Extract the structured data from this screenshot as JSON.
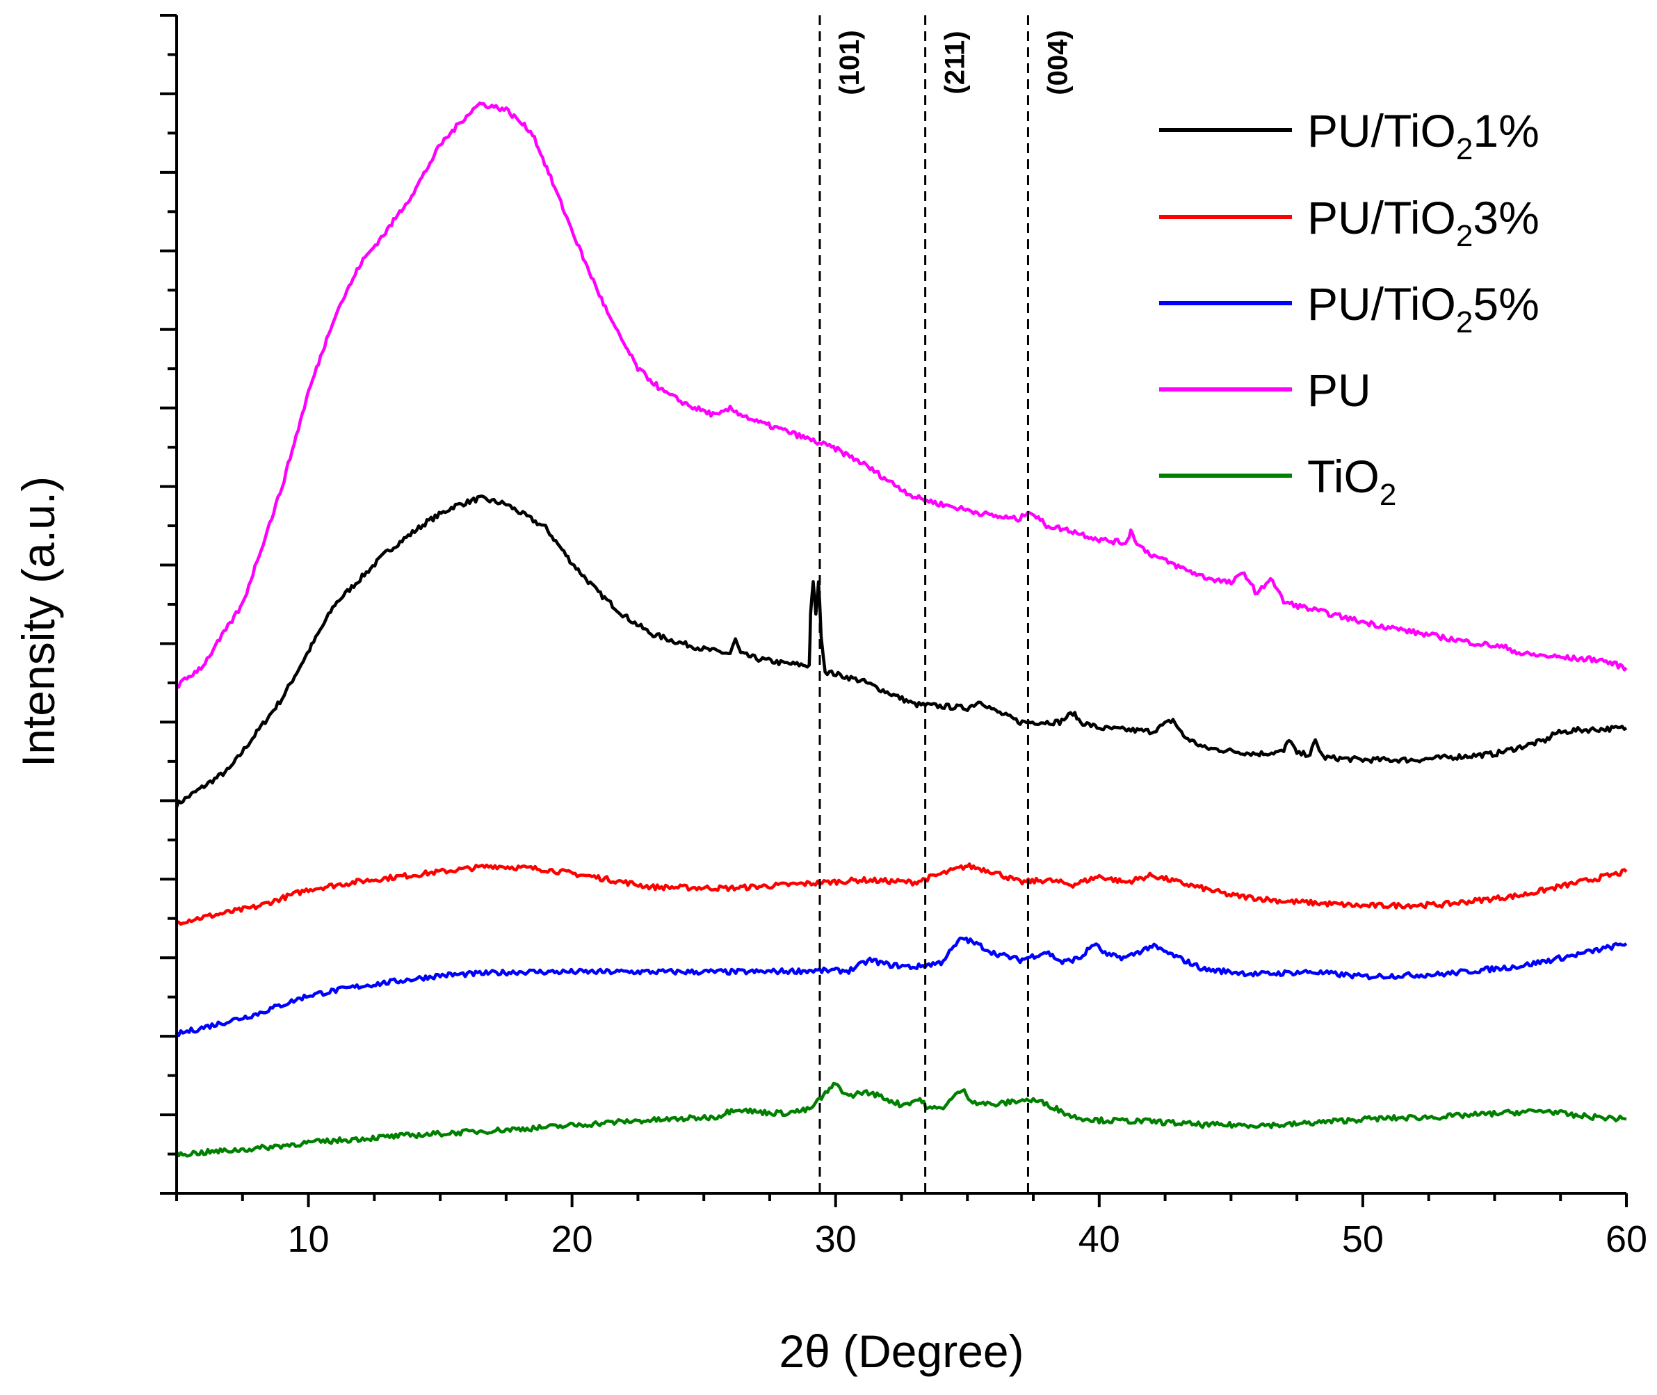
{
  "chart_data": {
    "type": "line",
    "title": "",
    "xlabel": "2θ (Degree)",
    "ylabel": "Intensity (a.u.)",
    "xlim": [
      5,
      60
    ],
    "ylim": [
      0,
      100
    ],
    "x_ticks": [
      10,
      20,
      30,
      40,
      50,
      60
    ],
    "x_tick_labels": [
      "10",
      "20",
      "30",
      "40",
      "50",
      "60"
    ],
    "y_tick_labels_shown": false,
    "grid": false,
    "legend_position": "top-right",
    "reference_lines": [
      {
        "label": "(101)",
        "x": 29.4
      },
      {
        "label": "(211)",
        "x": 33.4
      },
      {
        "label": "(004)",
        "x": 37.3
      }
    ],
    "series": [
      {
        "name": "PU/TiO21%",
        "legend_main": "PU/TiO",
        "legend_sub": "2",
        "legend_tail": "1%",
        "color": "#000000",
        "points": [
          [
            5,
            33
          ],
          [
            7,
            36
          ],
          [
            9,
            42
          ],
          [
            11,
            50
          ],
          [
            13,
            54.5
          ],
          [
            14.5,
            57
          ],
          [
            15.5,
            58.3
          ],
          [
            16.5,
            59
          ],
          [
            17.5,
            58.5
          ],
          [
            19,
            56.5
          ],
          [
            20,
            53.5
          ],
          [
            21,
            51
          ],
          [
            22,
            49
          ],
          [
            23,
            47.5
          ],
          [
            24,
            46.8
          ],
          [
            25,
            46.2
          ],
          [
            26,
            45.8
          ],
          [
            26.2,
            47
          ],
          [
            26.4,
            45.8
          ],
          [
            27,
            45.4
          ],
          [
            28,
            45
          ],
          [
            29,
            44.8
          ],
          [
            29.05,
            49
          ],
          [
            29.15,
            52
          ],
          [
            29.25,
            49
          ],
          [
            29.35,
            52
          ],
          [
            29.45,
            47.5
          ],
          [
            29.6,
            44.3
          ],
          [
            31,
            43.5
          ],
          [
            33,
            41.5
          ],
          [
            35,
            41.2
          ],
          [
            35.5,
            41.8
          ],
          [
            36,
            41
          ],
          [
            37,
            40
          ],
          [
            38.5,
            40
          ],
          [
            39,
            40.8
          ],
          [
            39.3,
            40
          ],
          [
            40,
            39.5
          ],
          [
            42,
            39.2
          ],
          [
            42.8,
            40.2
          ],
          [
            43.2,
            38.8
          ],
          [
            44,
            37.8
          ],
          [
            46,
            37.3
          ],
          [
            47,
            37.5
          ],
          [
            47.2,
            38.6
          ],
          [
            47.5,
            37.3
          ],
          [
            48,
            37.3
          ],
          [
            48.2,
            38.4
          ],
          [
            48.5,
            37
          ],
          [
            50,
            36.8
          ],
          [
            52,
            36.8
          ],
          [
            55,
            37.3
          ],
          [
            57,
            38.5
          ],
          [
            57.2,
            39
          ],
          [
            58,
            39.3
          ],
          [
            60,
            39.5
          ]
        ]
      },
      {
        "name": "PU/TiO23%",
        "legend_main": "PU/TiO",
        "legend_sub": "2",
        "legend_tail": "3%",
        "color": "#ff0000",
        "points": [
          [
            5,
            23
          ],
          [
            8,
            24.3
          ],
          [
            10,
            25.8
          ],
          [
            12,
            26.5
          ],
          [
            15,
            27.3
          ],
          [
            17,
            27.8
          ],
          [
            19,
            27.5
          ],
          [
            21,
            26.8
          ],
          [
            23,
            26
          ],
          [
            26,
            25.9
          ],
          [
            29,
            26.3
          ],
          [
            31,
            26.6
          ],
          [
            33,
            26.4
          ],
          [
            35,
            27.8
          ],
          [
            36,
            27.3
          ],
          [
            37,
            26.4
          ],
          [
            38,
            26.6
          ],
          [
            39,
            26.2
          ],
          [
            40,
            26.9
          ],
          [
            41,
            26.4
          ],
          [
            42,
            27
          ],
          [
            43,
            26.4
          ],
          [
            45,
            25.3
          ],
          [
            47,
            24.8
          ],
          [
            50,
            24.4
          ],
          [
            53,
            24.5
          ],
          [
            56,
            25.3
          ],
          [
            58,
            26.3
          ],
          [
            60,
            27.3
          ]
        ]
      },
      {
        "name": "PU/TiO25%",
        "legend_main": "PU/TiO",
        "legend_sub": "2",
        "legend_tail": "5%",
        "color": "#0000ff",
        "points": [
          [
            5,
            13.5
          ],
          [
            8,
            15.2
          ],
          [
            10,
            16.8
          ],
          [
            12,
            17.6
          ],
          [
            15,
            18.5
          ],
          [
            18,
            18.8
          ],
          [
            21,
            18.8
          ],
          [
            24,
            18.8
          ],
          [
            27,
            18.8
          ],
          [
            29,
            18.9
          ],
          [
            30.5,
            18.9
          ],
          [
            31.3,
            19.8
          ],
          [
            32,
            19.4
          ],
          [
            33,
            19.2
          ],
          [
            34,
            19.6
          ],
          [
            34.8,
            21.7
          ],
          [
            35.5,
            21
          ],
          [
            36,
            20.4
          ],
          [
            37,
            19.8
          ],
          [
            38,
            20.5
          ],
          [
            38.6,
            19.6
          ],
          [
            39.3,
            20
          ],
          [
            39.8,
            21.2
          ],
          [
            40.3,
            20.2
          ],
          [
            41,
            20
          ],
          [
            42,
            21
          ],
          [
            43,
            20
          ],
          [
            44,
            19
          ],
          [
            46,
            18.6
          ],
          [
            48,
            18.8
          ],
          [
            50,
            18.4
          ],
          [
            53,
            18.6
          ],
          [
            56,
            19.3
          ],
          [
            58,
            20.2
          ],
          [
            60,
            21.2
          ]
        ]
      },
      {
        "name": "PU",
        "legend_main": "PU",
        "legend_sub": "",
        "legend_tail": "",
        "color": "#ff00ff",
        "points": [
          [
            5,
            43
          ],
          [
            6,
            44.8
          ],
          [
            7.5,
            50
          ],
          [
            9,
            60
          ],
          [
            10,
            68
          ],
          [
            11,
            74.5
          ],
          [
            12,
            79
          ],
          [
            13,
            81.8
          ],
          [
            14,
            85
          ],
          [
            15,
            89
          ],
          [
            16,
            91.5
          ],
          [
            16.5,
            92.5
          ],
          [
            17.5,
            92
          ],
          [
            18.5,
            90
          ],
          [
            19.5,
            84.5
          ],
          [
            20.5,
            79
          ],
          [
            21.5,
            74
          ],
          [
            22.5,
            70
          ],
          [
            23.5,
            68
          ],
          [
            24.5,
            66.8
          ],
          [
            25.5,
            66
          ],
          [
            26,
            66.6
          ],
          [
            27,
            65.5
          ],
          [
            28,
            64.8
          ],
          [
            29,
            64
          ],
          [
            30,
            63.2
          ],
          [
            31,
            62
          ],
          [
            32,
            60.5
          ],
          [
            33,
            59.1
          ],
          [
            34,
            58.5
          ],
          [
            35,
            58
          ],
          [
            36,
            57.5
          ],
          [
            37,
            57.2
          ],
          [
            37.3,
            58
          ],
          [
            38,
            56.7
          ],
          [
            39,
            56.2
          ],
          [
            40,
            55.5
          ],
          [
            41,
            55.2
          ],
          [
            41.2,
            56.2
          ],
          [
            41.5,
            55
          ],
          [
            42,
            54.2
          ],
          [
            43,
            53.2
          ],
          [
            44,
            52.3
          ],
          [
            45,
            51.8
          ],
          [
            45.5,
            52.7
          ],
          [
            46,
            50.8
          ],
          [
            46.5,
            52.3
          ],
          [
            47,
            50.2
          ],
          [
            48,
            49.6
          ],
          [
            50,
            48.5
          ],
          [
            52,
            47.6
          ],
          [
            54,
            46.8
          ],
          [
            55.5,
            46.3
          ],
          [
            56,
            45.8
          ],
          [
            58,
            45.4
          ],
          [
            59,
            45.3
          ],
          [
            60,
            44.6
          ]
        ]
      },
      {
        "name": "TiO2",
        "legend_main": "TiO",
        "legend_sub": "2",
        "legend_tail": "",
        "color": "#008000",
        "points": [
          [
            5,
            3.3
          ],
          [
            8,
            3.8
          ],
          [
            10,
            4.3
          ],
          [
            13,
            4.8
          ],
          [
            16,
            5.2
          ],
          [
            19,
            5.6
          ],
          [
            22,
            6.1
          ],
          [
            24,
            6.3
          ],
          [
            25.5,
            6.5
          ],
          [
            26.2,
            7.2
          ],
          [
            27,
            6.9
          ],
          [
            28,
            6.8
          ],
          [
            29,
            7.1
          ],
          [
            30,
            9.3
          ],
          [
            30.5,
            8.2
          ],
          [
            31,
            8.6
          ],
          [
            31.5,
            8.4
          ],
          [
            32.5,
            7.5
          ],
          [
            33.2,
            8
          ],
          [
            33.5,
            7.2
          ],
          [
            34,
            7.2
          ],
          [
            34.8,
            8.8
          ],
          [
            35.2,
            7.8
          ],
          [
            36,
            7.5
          ],
          [
            37,
            7.9
          ],
          [
            37.5,
            7.9
          ],
          [
            38,
            7.6
          ],
          [
            39,
            6.5
          ],
          [
            40,
            6.2
          ],
          [
            42,
            6.1
          ],
          [
            44,
            5.8
          ],
          [
            47,
            5.8
          ],
          [
            50,
            6.3
          ],
          [
            53,
            6.5
          ],
          [
            56,
            6.9
          ],
          [
            57,
            7
          ],
          [
            58,
            6.6
          ],
          [
            60,
            6.3
          ]
        ]
      }
    ]
  }
}
